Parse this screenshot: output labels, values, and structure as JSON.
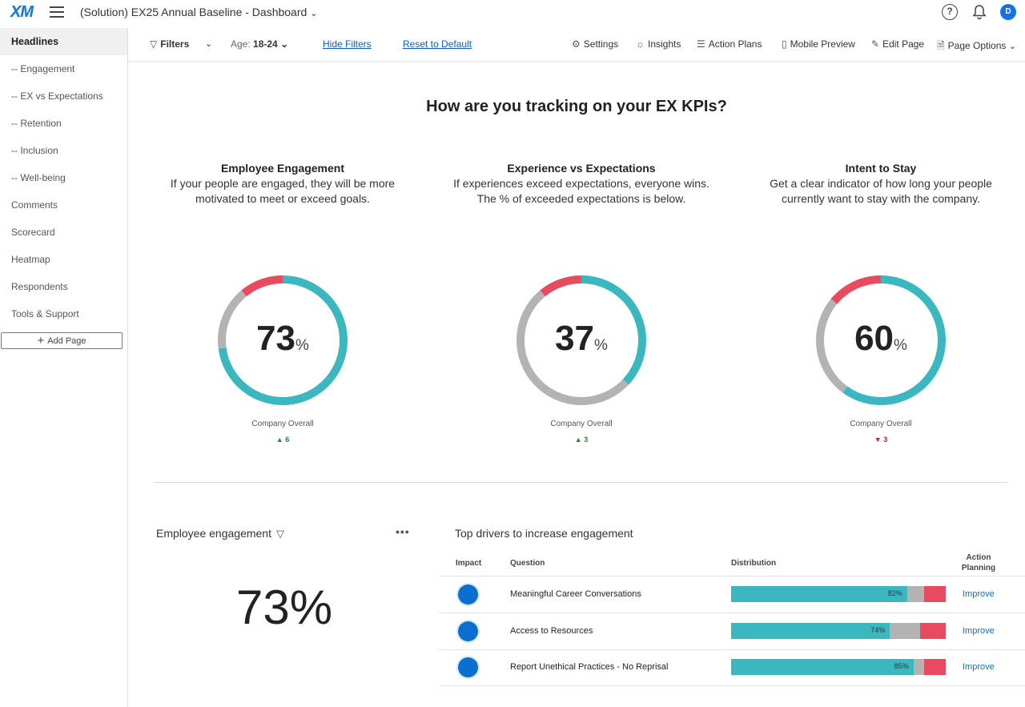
{
  "topbar": {
    "logo": "XM",
    "title": "(Solution) EX25 Annual Baseline - Dashboard",
    "help": "?",
    "avatar": "D"
  },
  "sidebar": {
    "items": [
      {
        "label": "Headlines",
        "active": true
      },
      {
        "label": "-- Engagement"
      },
      {
        "label": "-- EX vs Expectations"
      },
      {
        "label": "-- Retention"
      },
      {
        "label": "-- Inclusion"
      },
      {
        "label": "-- Well-being"
      },
      {
        "label": "Comments"
      },
      {
        "label": "Scorecard"
      },
      {
        "label": "Heatmap"
      },
      {
        "label": "Respondents"
      },
      {
        "label": "Tools & Support"
      }
    ],
    "add_page": "Add Page"
  },
  "toolbar": {
    "filters": "Filters",
    "age_label": "Age:",
    "age_value": "18-24",
    "hide_filters": "Hide Filters",
    "reset": "Reset to Default",
    "settings": "Settings",
    "insights": "Insights",
    "action_plans": "Action Plans",
    "mobile_preview": "Mobile Preview",
    "edit_page": "Edit Page",
    "page_options": "Page Options"
  },
  "main": {
    "title": "How are you tracking on your EX KPIs?",
    "kpis": [
      {
        "title": "Employee Engagement",
        "desc": "If your people are engaged, they will be more motivated to meet or exceed goals.",
        "value": "73",
        "pct": 73,
        "unfav": 11,
        "unit": "%",
        "label": "Company Overall",
        "delta": "6",
        "direction": "up"
      },
      {
        "title": "Experience vs Expectations",
        "desc": "If experiences exceed expectations, everyone wins. The % of exceeded expectations is below.",
        "value": "37",
        "pct": 37,
        "unfav": 11,
        "unit": "%",
        "label": "Company Overall",
        "delta": "3",
        "direction": "up"
      },
      {
        "title": "Intent to Stay",
        "desc": "Get a clear indicator of how long your people currently want to stay with the company.",
        "value": "60",
        "pct": 60,
        "unfav": 14,
        "unit": "%",
        "label": "Company Overall",
        "delta": "3",
        "direction": "down"
      }
    ]
  },
  "engagement_widget": {
    "title": "Employee engagement",
    "more": "•••",
    "value": "73%"
  },
  "drivers": {
    "title": "Top drivers to increase engagement",
    "headers": {
      "impact": "Impact",
      "question": "Question",
      "distribution": "Distribution",
      "action": "Action Planning"
    },
    "rows": [
      {
        "question": "Meaningful Career Conversations",
        "fav": 82,
        "fav_label": "82%",
        "neutral": 8,
        "unfav": 10,
        "action": "Improve"
      },
      {
        "question": "Access to Resources",
        "fav": 74,
        "fav_label": "74%",
        "neutral": 14,
        "unfav": 12,
        "action": "Improve"
      },
      {
        "question": "Report Unethical Practices - No Reprisal",
        "fav": 85,
        "fav_label": "85%",
        "neutral": 5,
        "unfav": 10,
        "action": "Improve"
      }
    ]
  },
  "colors": {
    "favorable": "#3bb8bf",
    "neutral": "#b3b3b3",
    "unfavorable": "#e84a5f",
    "accent": "#0b6fd0"
  }
}
